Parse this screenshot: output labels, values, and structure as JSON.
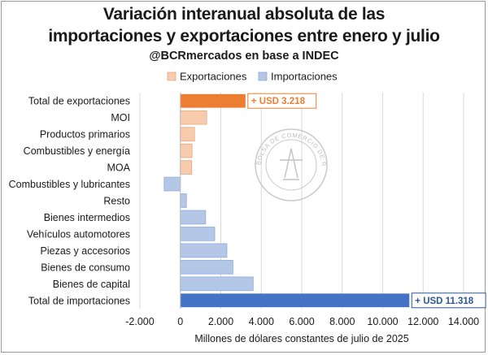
{
  "chart_data": {
    "type": "bar",
    "orientation": "horizontal",
    "title": "Variación interanual absoluta de las importaciones y exportaciones entre enero y julio",
    "title_line1": "Variación interanual absoluta de las",
    "title_line2": "importaciones y exportaciones entre enero y julio",
    "subtitle": "@BCRmercados en base a INDEC",
    "xlabel": "Millones de dólares constantes de julio de 2025",
    "ylabel": "",
    "xlim": [
      -2000,
      14000
    ],
    "xticks": [
      -2000,
      0,
      2000,
      4000,
      6000,
      8000,
      10000,
      12000,
      14000
    ],
    "xtick_labels": [
      "-2.000",
      "0",
      "2.000",
      "4.000",
      "6.000",
      "8.000",
      "10.000",
      "12.000",
      "14.000"
    ],
    "grid": true,
    "legend_position": "top",
    "legend": [
      {
        "name": "Exportaciones",
        "color": "#f8cbad"
      },
      {
        "name": "Importaciones",
        "color": "#b4c7e7"
      }
    ],
    "categories": [
      "Total de exportaciones",
      "MOI",
      "Productos primarios",
      "Combustibles y energía",
      "MOA",
      "Combustibles y lubricantes",
      "Resto",
      "Bienes intermedios",
      "Vehículos automotores",
      "Piezas y accesorios",
      "Bienes de consumo",
      "Bienes de capital",
      "Total de importaciones"
    ],
    "values": [
      3218,
      1300,
      700,
      580,
      560,
      -800,
      300,
      1250,
      1700,
      2300,
      2600,
      3600,
      11318
    ],
    "groups": [
      "Exportaciones",
      "Exportaciones",
      "Exportaciones",
      "Exportaciones",
      "Exportaciones",
      "Importaciones",
      "Importaciones",
      "Importaciones",
      "Importaciones",
      "Importaciones",
      "Importaciones",
      "Importaciones",
      "Importaciones"
    ],
    "colors": [
      "#ed7d31",
      "#f8cbad",
      "#f8cbad",
      "#f8cbad",
      "#f8cbad",
      "#b4c7e7",
      "#b4c7e7",
      "#b4c7e7",
      "#b4c7e7",
      "#b4c7e7",
      "#b4c7e7",
      "#b4c7e7",
      "#4472c4"
    ],
    "annotations": [
      {
        "category": "Total de exportaciones",
        "text": "+ USD 3.218",
        "color": "#ed7d31"
      },
      {
        "category": "Total de importaciones",
        "text": "+ USD 11.318",
        "color": "#2f5597"
      }
    ],
    "watermark": "BOLSA DE COMERCIO DE ROSARIO"
  }
}
